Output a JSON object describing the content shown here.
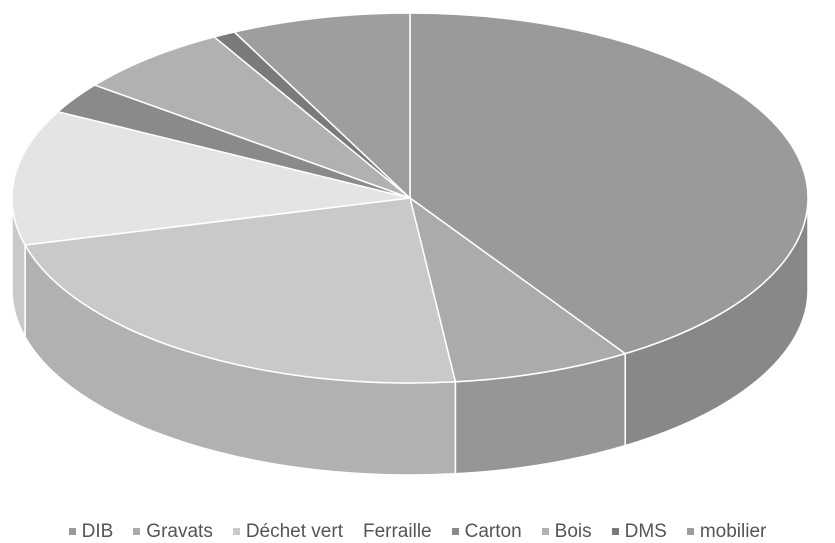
{
  "chart_data": {
    "type": "pie",
    "style": "3d",
    "categories": [
      "DIB",
      "Gravats",
      "Déchet vert",
      "Ferraille",
      "Carton",
      "Bois",
      "DMS",
      "mobilier"
    ],
    "values": [
      45,
      8,
      25,
      13,
      3,
      7,
      1,
      8
    ],
    "colors": [
      "#9a9a9a",
      "#ababab",
      "#c9c9c9",
      "#e4e4e4",
      "#8a8a8a",
      "#b1b1b1",
      "#7a7a7a",
      "#9e9e9e"
    ],
    "legend_position": "bottom",
    "legend_markers": [
      true,
      true,
      true,
      false,
      true,
      true,
      true,
      true
    ]
  }
}
